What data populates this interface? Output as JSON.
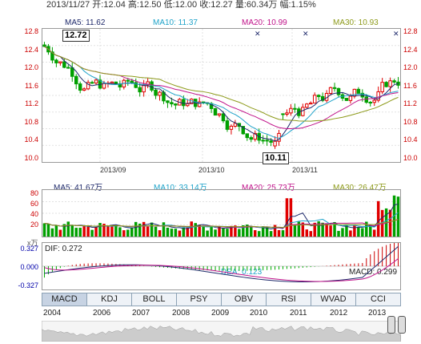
{
  "quote": "2013/11/27 开:12.04 高:12.50 低:12.00 收:12.27 量:60.34万 幅:1.15%",
  "ma_price": {
    "ma5": "MA5: 11.62",
    "ma10": "MA10: 11.37",
    "ma20": "MA20: 10.99",
    "ma30": "MA30: 10.93"
  },
  "ma_volume": {
    "ma5": "MA5: 41.67万",
    "ma10": "MA10: 33.14万",
    "ma20": "MA20: 25.73万",
    "ma30": "MA30: 26.47万"
  },
  "price_axis": [
    "12.8",
    "12.4",
    "12.0",
    "11.6",
    "11.2",
    "10.8",
    "10.4",
    "10.0"
  ],
  "volume_axis": [
    "80",
    "60",
    "40",
    "20"
  ],
  "volume_unit": "x万",
  "macd_axis": [
    "0.327",
    "0.000",
    "-0.327"
  ],
  "macd": {
    "dif": "DIF: 0.272",
    "dea": "DEA: 0.123",
    "macd": "MACD: 0.299"
  },
  "date_labels": [
    "2013/09",
    "2013/10",
    "2013/11"
  ],
  "high_flag": "12.72",
  "low_flag": "10.11",
  "tabs": [
    "MACD",
    "KDJ",
    "BOLL",
    "PSY",
    "OBV",
    "RSI",
    "WVAD",
    "CCI"
  ],
  "active_tab": "MACD",
  "years": [
    "2004",
    "2006",
    "2007",
    "2008",
    "2009",
    "2010",
    "2011",
    "2012",
    "2013"
  ],
  "colors": {
    "up": "#e00000",
    "down": "#00a000",
    "ma5": "#1f2a6b",
    "ma10": "#1fa3c9",
    "ma20": "#c0138a",
    "ma30": "#8d9a1a"
  }
}
